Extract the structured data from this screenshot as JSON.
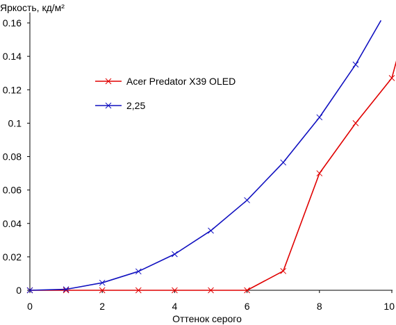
{
  "chart_data": {
    "type": "line",
    "xlabel": "Оттенок серого",
    "ylabel": "Яркость, кд/м²",
    "xlim": [
      0,
      10
    ],
    "ylim": [
      0,
      0.16
    ],
    "x_ticks": [
      0,
      2,
      4,
      6,
      8,
      10
    ],
    "y_ticks": [
      0,
      0.02,
      0.04,
      0.06,
      0.08,
      0.1,
      0.12,
      0.14,
      0.16
    ],
    "x_tick_labels": [
      "0",
      "2",
      "4",
      "6",
      "8",
      "10"
    ],
    "y_tick_labels": [
      "0",
      "0.02",
      "0.04",
      "0.06",
      "0.08",
      "0.1",
      "0.12",
      "0.14",
      "0.16"
    ],
    "grid": false,
    "legend_position": "center-left",
    "series": [
      {
        "name": "Acer Predator X39 OLED",
        "color": "#e00000",
        "marker": "x",
        "x": [
          0,
          1,
          2,
          3,
          4,
          5,
          6,
          7,
          8,
          9,
          10,
          10.15
        ],
        "y": [
          0,
          0,
          0,
          0,
          0,
          0,
          0,
          0.0115,
          0.07,
          0.1,
          0.127,
          0.139
        ],
        "marked": [
          true,
          true,
          true,
          true,
          true,
          true,
          true,
          true,
          true,
          true,
          true,
          false
        ]
      },
      {
        "name": "2,25",
        "color": "#1010c0",
        "marker": "x",
        "x": [
          0,
          1,
          2,
          3,
          4,
          5,
          6,
          7,
          8,
          9,
          9.7
        ],
        "y": [
          0,
          0.0006,
          0.0045,
          0.0113,
          0.0216,
          0.0357,
          0.0539,
          0.0765,
          0.1035,
          0.1351,
          0.1615
        ],
        "marked": [
          true,
          true,
          true,
          true,
          true,
          true,
          true,
          true,
          true,
          true,
          false
        ]
      }
    ]
  }
}
